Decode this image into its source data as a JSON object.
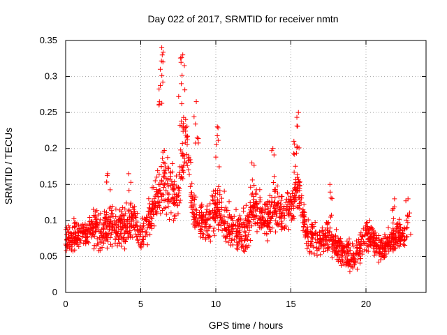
{
  "chart_data": {
    "type": "scatter",
    "title": "Day 022 of 2017, SRMTID for receiver nmtn",
    "xlabel": "GPS time / hours",
    "ylabel": "SRMTID / TECUs",
    "xlim": [
      0,
      24
    ],
    "ylim": [
      0,
      0.35
    ],
    "xticks": [
      0,
      5,
      10,
      15,
      20
    ],
    "xtick_labels": [
      "0",
      "5",
      "10",
      "15",
      "20"
    ],
    "yticks": [
      0,
      0.05,
      0.1,
      0.15,
      0.2,
      0.25,
      0.3,
      0.35
    ],
    "ytick_labels": [
      "0",
      "0.05",
      "0.1",
      "0.15",
      "0.2",
      "0.25",
      "0.3",
      "0.35"
    ],
    "grid": true,
    "marker": "+",
    "color": "#ff0000",
    "series": [
      {
        "name": "SRMTID",
        "envelope_x": [
          0,
          0.5,
          1,
          1.5,
          2,
          2.5,
          3,
          3.5,
          4,
          4.5,
          5,
          5.5,
          6,
          6.5,
          7,
          7.5,
          8,
          8.5,
          9,
          9.5,
          10,
          10.5,
          11,
          11.5,
          12,
          12.5,
          13,
          13.5,
          14,
          14.5,
          15,
          15.5,
          16,
          16.5,
          17,
          17.5,
          18,
          18.5,
          19,
          19.5,
          20,
          20.5,
          21,
          21.5,
          22,
          22.5,
          22.8
        ],
        "median_y": [
          0.075,
          0.078,
          0.08,
          0.083,
          0.09,
          0.085,
          0.095,
          0.085,
          0.09,
          0.1,
          0.075,
          0.1,
          0.12,
          0.16,
          0.14,
          0.13,
          0.22,
          0.11,
          0.1,
          0.09,
          0.12,
          0.1,
          0.09,
          0.08,
          0.085,
          0.12,
          0.11,
          0.1,
          0.12,
          0.1,
          0.12,
          0.15,
          0.08,
          0.075,
          0.07,
          0.08,
          0.065,
          0.055,
          0.05,
          0.06,
          0.08,
          0.075,
          0.06,
          0.07,
          0.075,
          0.08,
          0.09
        ],
        "spread_y": [
          0.03,
          0.03,
          0.03,
          0.03,
          0.04,
          0.04,
          0.04,
          0.04,
          0.04,
          0.04,
          0.03,
          0.04,
          0.05,
          0.06,
          0.06,
          0.05,
          0.06,
          0.04,
          0.04,
          0.04,
          0.05,
          0.05,
          0.04,
          0.04,
          0.04,
          0.04,
          0.04,
          0.04,
          0.04,
          0.04,
          0.04,
          0.05,
          0.03,
          0.03,
          0.03,
          0.03,
          0.03,
          0.03,
          0.03,
          0.03,
          0.03,
          0.03,
          0.03,
          0.03,
          0.03,
          0.03,
          0.03
        ],
        "peaks": [
          {
            "x": 6.4,
            "y": 0.34
          },
          {
            "x": 6.3,
            "y": 0.31
          },
          {
            "x": 7.8,
            "y": 0.33
          },
          {
            "x": 7.7,
            "y": 0.29
          },
          {
            "x": 8.7,
            "y": 0.265
          },
          {
            "x": 10.1,
            "y": 0.23
          },
          {
            "x": 15.5,
            "y": 0.25
          },
          {
            "x": 15.2,
            "y": 0.21
          },
          {
            "x": 13.8,
            "y": 0.2
          },
          {
            "x": 12.4,
            "y": 0.18
          },
          {
            "x": 2.8,
            "y": 0.165
          },
          {
            "x": 4.2,
            "y": 0.165
          },
          {
            "x": 17.6,
            "y": 0.15
          },
          {
            "x": 21.9,
            "y": 0.13
          },
          {
            "x": 22.8,
            "y": 0.13
          }
        ]
      }
    ]
  }
}
